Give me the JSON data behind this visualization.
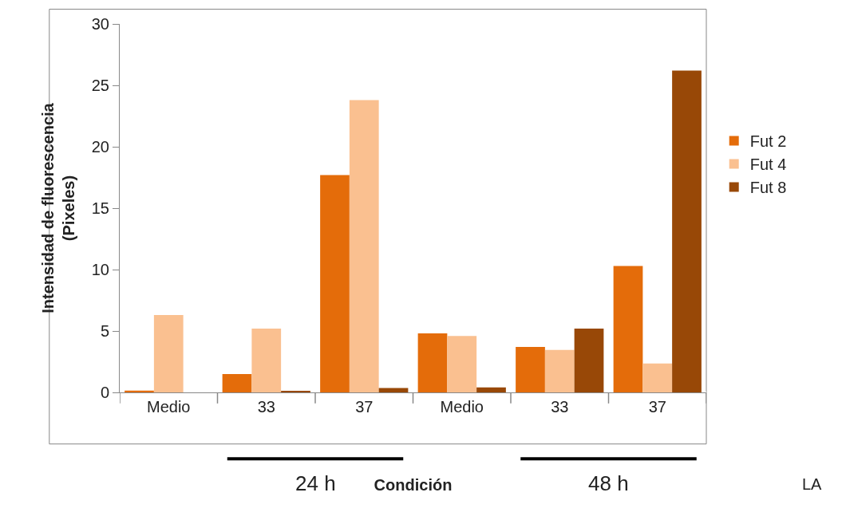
{
  "chart_data": {
    "type": "bar",
    "xlabel": "Condición",
    "ylabel": "Intensidad de fluorescencia\n(Pixeles)",
    "categories": [
      "Medio",
      "33",
      "37",
      "Medio",
      "33",
      "37"
    ],
    "series": [
      {
        "name": "Fut 2",
        "color": "#e46c0a",
        "values": [
          0.15,
          1.5,
          17.7,
          4.8,
          3.7,
          10.3
        ]
      },
      {
        "name": "Fut 4",
        "color": "#fac090",
        "values": [
          6.3,
          5.2,
          23.8,
          4.6,
          3.45,
          2.35
        ]
      },
      {
        "name": "Fut 8",
        "color": "#984807",
        "values": [
          0,
          0.1,
          0.35,
          0.4,
          5.2,
          26.2
        ]
      }
    ],
    "ylim": [
      0,
      30
    ],
    "yticks": [
      0,
      5,
      10,
      15,
      20,
      25,
      30
    ],
    "grid": false,
    "legend": "right",
    "annotations": [
      "24 h",
      "48 h",
      "LA"
    ]
  }
}
